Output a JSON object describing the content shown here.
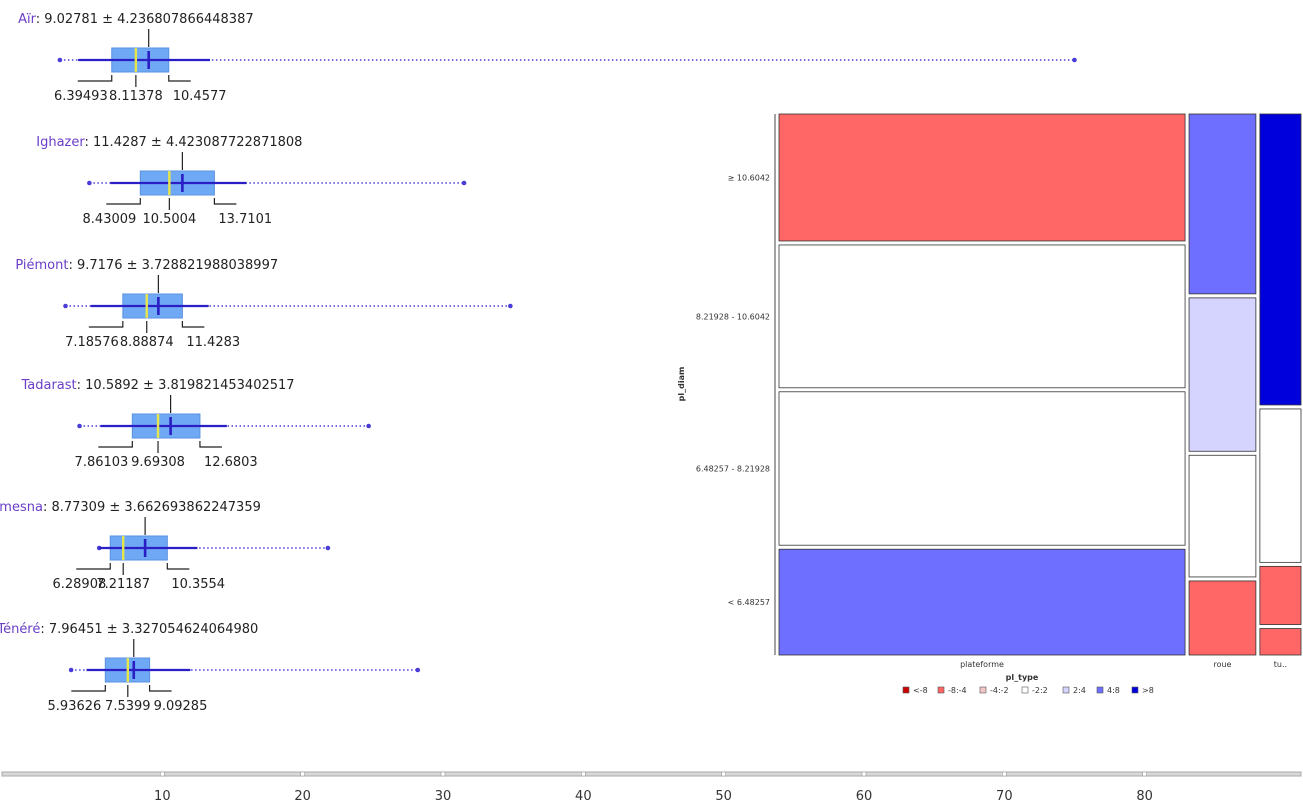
{
  "boxplots": {
    "separator": ": ",
    "pm": " ± ",
    "groups": [
      {
        "name": "Aïr",
        "mean": "9.02781",
        "sd": "4.236807866448387",
        "q1": "6.39493",
        "median": "8.11378",
        "q3": "10.4577",
        "v_q1": 6.39493,
        "v_median": 8.11378,
        "v_q3": 10.4577,
        "v_mean": 9.02781,
        "v_whisk_lo": 4.0,
        "v_whisk_hi": 13.4,
        "v_min": 2.7,
        "v_max": 75.0
      },
      {
        "name": "Ighazer",
        "mean": "11.4287",
        "sd": "4.423087722871808",
        "q1": "8.43009",
        "median": "10.5004",
        "q3": "13.7101",
        "v_q1": 8.43009,
        "v_median": 10.5004,
        "v_q3": 13.7101,
        "v_mean": 11.4287,
        "v_whisk_lo": 6.3,
        "v_whisk_hi": 16.0,
        "v_min": 4.8,
        "v_max": 31.5
      },
      {
        "name": "Piémont",
        "mean": "9.7176",
        "sd": "3.728821988038997",
        "q1": "7.18576",
        "median": "8.88874",
        "q3": "11.4283",
        "v_q1": 7.18576,
        "v_median": 8.88874,
        "v_q3": 11.4283,
        "v_mean": 9.7176,
        "v_whisk_lo": 4.9,
        "v_whisk_hi": 13.3,
        "v_min": 3.1,
        "v_max": 34.8
      },
      {
        "name": "Tadarast",
        "mean": "10.5892",
        "sd": "3.819821453402517",
        "q1": "7.86103",
        "median": "9.69308",
        "q3": "12.6803",
        "v_q1": 7.86103,
        "v_median": 9.69308,
        "v_q3": 12.6803,
        "v_mean": 10.5892,
        "v_whisk_lo": 5.6,
        "v_whisk_hi": 14.6,
        "v_min": 4.1,
        "v_max": 24.7
      },
      {
        "name": "Tamesna",
        "mean": "8.77309",
        "sd": "3.662693862247359",
        "q1": "6.28908",
        "median": "7.21187",
        "q3": "10.3554",
        "v_q1": 6.28908,
        "v_median": 7.21187,
        "v_q3": 10.3554,
        "v_mean": 8.77309,
        "v_whisk_lo": 5.5,
        "v_whisk_hi": 12.5,
        "v_min": 5.5,
        "v_max": 21.8
      },
      {
        "name": "Ténéré",
        "mean": "7.96451",
        "sd": "3.327054624064980",
        "q1": "5.93626",
        "median": "7.5399",
        "q3": "9.09285",
        "v_q1": 5.93626,
        "v_median": 7.5399,
        "v_q3": 9.09285,
        "v_mean": 7.96451,
        "v_whisk_lo": 4.6,
        "v_whisk_hi": 12.0,
        "v_min": 3.5,
        "v_max": 28.2
      }
    ]
  },
  "x_axis": {
    "ticks": [
      "10",
      "20",
      "30",
      "40",
      "50",
      "60",
      "70",
      "80"
    ],
    "tick_values": [
      10,
      20,
      30,
      40,
      50,
      60,
      70,
      80
    ]
  },
  "mosaic": {
    "y_label": "pl_diam",
    "x_label": "pl_type",
    "rows": [
      "≥ 10.6042",
      "8.21928 - 10.6042",
      "6.48257 - 8.21928",
      "< 6.48257"
    ],
    "columns": [
      "plateforme",
      "roue",
      "tu.."
    ],
    "column_fractions": [
      0.79,
      0.13,
      0.08
    ],
    "cells": [
      {
        "column": "plateforme",
        "proportions": [
          0.24,
          0.27,
          0.29,
          0.2
        ],
        "residual_class": [
          "-8:-4",
          "-2:2",
          "-2:2",
          "4:8"
        ]
      },
      {
        "column": "roue",
        "proportions": [
          0.34,
          0.29,
          0.23,
          0.14
        ],
        "residual_class": [
          "4:8",
          "2:4",
          "-2:2",
          "-8:-4"
        ]
      },
      {
        "column": "tu..",
        "proportions": [
          0.55,
          0.29,
          0.11,
          0.05
        ],
        "residual_class": [
          ">8",
          "-2:2",
          "-8:-4",
          "-8:-4"
        ]
      }
    ],
    "legend": [
      {
        "label": "<-8",
        "color": "#cc0000"
      },
      {
        "label": "-8:-4",
        "color": "#ff6666"
      },
      {
        "label": "-4:-2",
        "color": "#f3c6c6"
      },
      {
        "label": "-2:2",
        "color": "#ffffff"
      },
      {
        "label": "2:4",
        "color": "#d4d4ff"
      },
      {
        "label": "4:8",
        "color": "#6f6fff"
      },
      {
        "label": ">8",
        "color": "#0000dd"
      }
    ]
  },
  "chart_data": [
    {
      "type": "boxplot",
      "title": "",
      "categories": [
        "Aïr",
        "Ighazer",
        "Piémont",
        "Tadarast",
        "Tamesna",
        "Ténéré"
      ],
      "series": [
        {
          "name": "mean",
          "values": [
            9.02781,
            11.4287,
            9.7176,
            10.5892,
            8.77309,
            7.96451
          ]
        },
        {
          "name": "sd",
          "values": [
            4.236807866448387,
            4.423087722871808,
            3.728821988038997,
            3.819821453402517,
            3.662693862247359,
            3.32705462406498
          ]
        },
        {
          "name": "q1",
          "values": [
            6.39493,
            8.43009,
            7.18576,
            7.86103,
            6.28908,
            5.93626
          ]
        },
        {
          "name": "median",
          "values": [
            8.11378,
            10.5004,
            8.88874,
            9.69308,
            7.21187,
            7.5399
          ]
        },
        {
          "name": "q3",
          "values": [
            10.4577,
            13.7101,
            11.4283,
            12.6803,
            10.3554,
            9.09285
          ]
        }
      ],
      "xlim": [
        0,
        90
      ],
      "grid": false
    },
    {
      "type": "mosaic",
      "xlabel": "pl_type",
      "ylabel": "pl_diam",
      "categories": [
        "plateforme",
        "roue",
        "tu.."
      ],
      "rows": [
        "≥ 10.6042",
        "8.21928 - 10.6042",
        "6.48257 - 8.21928",
        "< 6.48257"
      ],
      "legend_position": "bottom"
    }
  ]
}
